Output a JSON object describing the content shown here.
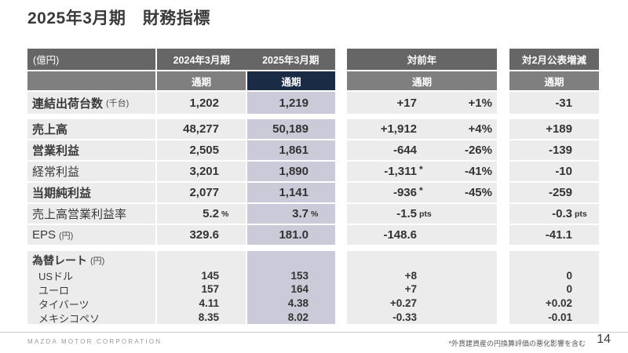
{
  "page": {
    "title": "2025年3月期　財務指標",
    "footer": {
      "company": "MAZDA MOTOR CORPORATION",
      "note": "*外貨建資産の円換算評価の悪化影響を含む",
      "page_number": "14"
    }
  },
  "colors": {
    "header_dark_gray": "#666666",
    "header_mid_gray": "#7f7f7f",
    "accent_navy": "#1a2b45",
    "highlight_lavender": "#cacad8",
    "row_background": "#ececec"
  },
  "table": {
    "header": {
      "unit_label": "(億円)",
      "col_2024": "2024年3月期",
      "col_2025": "2025年3月期",
      "period_label": "通期",
      "col_yoy": "対前年",
      "col_vs_feb": "対2月公表増減"
    },
    "rows": [
      {
        "label": "連結出荷台数",
        "unit": "(千台)",
        "bold": true,
        "v2024": "1,202",
        "s2024": "",
        "v2025": "1,219",
        "s2025": "",
        "yoy": "+17",
        "yoy_sfx": "",
        "yoy_pct": "+1%",
        "vsfeb": "-31",
        "vsfeb_sfx": "",
        "gap_after": true
      },
      {
        "label": "売上高",
        "unit": "",
        "bold": true,
        "v2024": "48,277",
        "s2024": "",
        "v2025": "50,189",
        "s2025": "",
        "yoy": "+1,912",
        "yoy_sfx": "",
        "yoy_pct": "+4%",
        "vsfeb": "+189",
        "vsfeb_sfx": "",
        "gap_after": false
      },
      {
        "label": "営業利益",
        "unit": "",
        "bold": true,
        "v2024": "2,505",
        "s2024": "",
        "v2025": "1,861",
        "s2025": "",
        "yoy": "-644",
        "yoy_sfx": "",
        "yoy_pct": "-26%",
        "vsfeb": "-139",
        "vsfeb_sfx": "",
        "gap_after": false
      },
      {
        "label": "経常利益",
        "unit": "",
        "bold": false,
        "v2024": "3,201",
        "s2024": "",
        "v2025": "1,890",
        "s2025": "",
        "yoy": "-1,311",
        "yoy_sfx": "*",
        "yoy_pct": "-41%",
        "vsfeb": "-10",
        "vsfeb_sfx": "",
        "gap_after": false
      },
      {
        "label": "当期純利益",
        "unit": "",
        "bold": true,
        "v2024": "2,077",
        "s2024": "",
        "v2025": "1,141",
        "s2025": "",
        "yoy": "-936",
        "yoy_sfx": "*",
        "yoy_pct": "-45%",
        "vsfeb": "-259",
        "vsfeb_sfx": "",
        "gap_after": false
      },
      {
        "label": "売上高営業利益率",
        "unit": "",
        "bold": false,
        "v2024": "5.2",
        "s2024": "%",
        "v2025": "3.7",
        "s2025": "%",
        "yoy": "-1.5",
        "yoy_sfx": "pts",
        "yoy_pct": "",
        "vsfeb": "-0.3",
        "vsfeb_sfx": "pts",
        "gap_after": false
      },
      {
        "label": "EPS",
        "unit": "(円)",
        "bold": false,
        "v2024": "329.6",
        "s2024": "",
        "v2025": "181.0",
        "s2025": "",
        "yoy": "-148.6",
        "yoy_sfx": "",
        "yoy_pct": "",
        "vsfeb": "-41.1",
        "vsfeb_sfx": "",
        "gap_after": true
      }
    ],
    "fx": {
      "label": "為替レート",
      "unit": "(円)",
      "rows": [
        {
          "label": "USドル",
          "v2024": "145",
          "v2025": "153",
          "yoy": "+8",
          "vsfeb": "0"
        },
        {
          "label": "ユーロ",
          "v2024": "157",
          "v2025": "164",
          "yoy": "+7",
          "vsfeb": "0"
        },
        {
          "label": "タイバーツ",
          "v2024": "4.11",
          "v2025": "4.38",
          "yoy": "+0.27",
          "vsfeb": "+0.02"
        },
        {
          "label": "メキシコペソ",
          "v2024": "8.35",
          "v2025": "8.02",
          "yoy": "-0.33",
          "vsfeb": "-0.01"
        }
      ]
    }
  }
}
